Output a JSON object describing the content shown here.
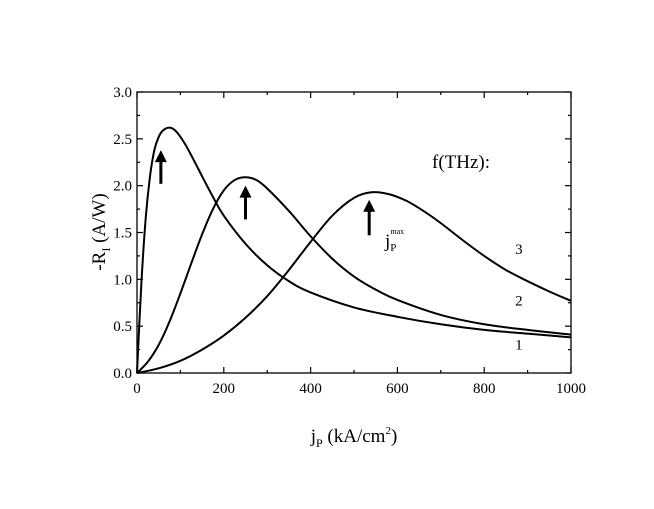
{
  "chart_data": {
    "type": "line",
    "title": "",
    "xlabel": "j_P (kA/cm^2)",
    "ylabel": "-R_I (A/W)",
    "xlim": [
      0,
      1000
    ],
    "ylim": [
      0,
      3.0
    ],
    "xticks": [
      0,
      200,
      400,
      600,
      800,
      1000
    ],
    "xtick_labels": [
      "0",
      "200",
      "400",
      "600",
      "800",
      "1000"
    ],
    "yticks": [
      0.0,
      0.5,
      1.0,
      1.5,
      2.0,
      2.5,
      3.0
    ],
    "ytick_labels": [
      "0.0",
      "0.5",
      "1.0",
      "1.5",
      "2.0",
      "2.5",
      "3.0"
    ],
    "grid": false,
    "legend_title": "f(THz):",
    "series": [
      {
        "name": "1",
        "x": [
          0,
          10,
          20,
          30,
          40,
          50,
          60,
          75,
          90,
          110,
          130,
          150,
          175,
          200,
          250,
          300,
          350,
          400,
          500,
          600,
          700,
          800,
          900,
          1000
        ],
        "values": [
          0,
          0.95,
          1.65,
          2.1,
          2.38,
          2.52,
          2.59,
          2.62,
          2.58,
          2.45,
          2.28,
          2.1,
          1.88,
          1.68,
          1.38,
          1.15,
          0.98,
          0.86,
          0.7,
          0.6,
          0.52,
          0.46,
          0.42,
          0.38
        ],
        "peak_marker_x": 55
      },
      {
        "name": "2",
        "x": [
          0,
          25,
          50,
          75,
          100,
          125,
          150,
          175,
          200,
          225,
          250,
          275,
          300,
          350,
          400,
          450,
          500,
          550,
          600,
          700,
          800,
          900,
          1000
        ],
        "values": [
          0,
          0.12,
          0.3,
          0.55,
          0.85,
          1.17,
          1.48,
          1.75,
          1.95,
          2.06,
          2.09,
          2.06,
          1.97,
          1.73,
          1.46,
          1.22,
          1.03,
          0.89,
          0.78,
          0.62,
          0.52,
          0.46,
          0.41
        ],
        "peak_marker_x": 250
      },
      {
        "name": "3",
        "x": [
          0,
          50,
          100,
          150,
          200,
          250,
          300,
          350,
          400,
          450,
          500,
          540,
          580,
          620,
          660,
          700,
          750,
          800,
          850,
          900,
          950,
          1000
        ],
        "values": [
          0,
          0.05,
          0.13,
          0.25,
          0.4,
          0.59,
          0.82,
          1.1,
          1.4,
          1.68,
          1.87,
          1.93,
          1.91,
          1.84,
          1.73,
          1.6,
          1.42,
          1.25,
          1.1,
          0.98,
          0.87,
          0.77
        ],
        "peak_marker_x": 535
      }
    ],
    "annotations": [
      {
        "text": "f(THz):",
        "x": 860,
        "y": 2.05
      },
      {
        "text": "j_P^max",
        "x": 575,
        "y": 1.35
      },
      {
        "text": "3",
        "x": 880,
        "y": 1.27
      },
      {
        "text": "2",
        "x": 880,
        "y": 0.72
      },
      {
        "text": "1",
        "x": 880,
        "y": 0.25
      }
    ]
  },
  "labels": {
    "ylabel_main": "-R",
    "ylabel_sub": "I",
    "ylabel_rest": " (A/W)",
    "xlabel_main": "j",
    "xlabel_sub": "P",
    "xlabel_rest": " (kA/cm",
    "xlabel_sup": "2",
    "xlabel_close": ")",
    "legend_title": "f(THz):",
    "jmax_main": "j",
    "jmax_sub": "P",
    "jmax_sup": "max"
  }
}
